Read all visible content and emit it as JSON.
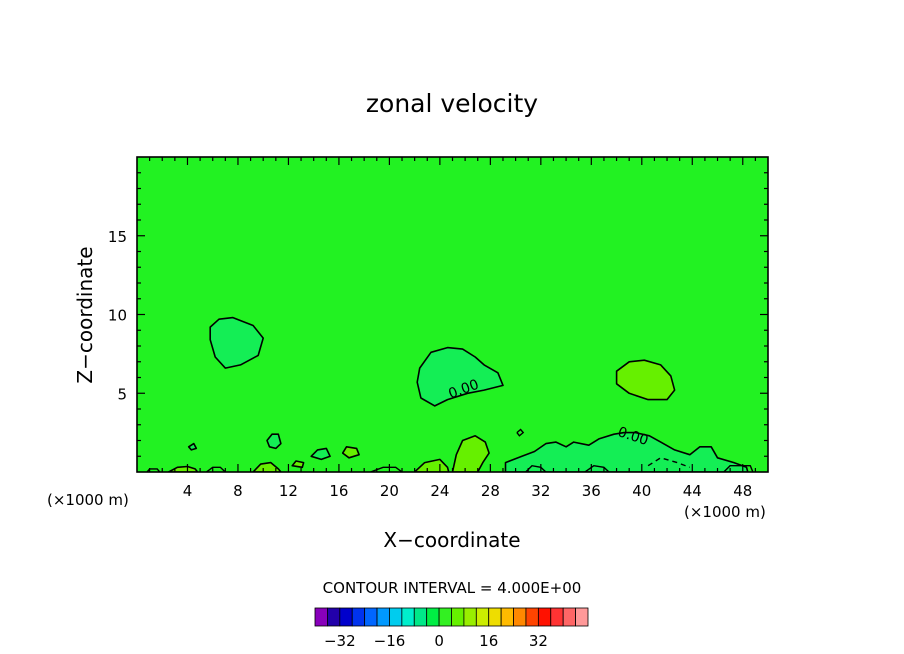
{
  "chart_data": {
    "type": "contour",
    "title": "zonal velocity",
    "xlabel": "X−coordinate",
    "ylabel": "Z−coordinate",
    "x_unit_left": "(×1000 m)",
    "x_unit_right": "(×1000 m)",
    "xlim": [
      0,
      50
    ],
    "ylim": [
      0,
      20
    ],
    "x_ticks": [
      4,
      8,
      12,
      16,
      20,
      24,
      28,
      32,
      36,
      40,
      44,
      48
    ],
    "y_ticks": [
      5,
      10,
      15
    ],
    "contour_label": "0.00",
    "contour_interval_text": "CONTOUR INTERVAL = 4.000E+00",
    "background_color": "#22f222",
    "colorbar": {
      "colors": [
        "#8800bb",
        "#2200aa",
        "#0000cc",
        "#0033ee",
        "#0066ff",
        "#0099ff",
        "#00ccee",
        "#00eecc",
        "#00e888",
        "#00ee44",
        "#33f022",
        "#66f000",
        "#99ee00",
        "#cced00",
        "#eedd00",
        "#ffbb00",
        "#ff8800",
        "#ff4400",
        "#ff1100",
        "#ff3333",
        "#ff6666",
        "#ff9999"
      ],
      "tick_values": [
        -32,
        -16,
        0,
        16,
        32
      ],
      "tick_labels": [
        "−32",
        "−16",
        "0",
        "16",
        "32"
      ],
      "min": -40,
      "max": 48
    },
    "regions": [
      {
        "name": "neg-blob-upper-left",
        "color": "#14ee55",
        "points": [
          [
            5.8,
            9.2
          ],
          [
            6.5,
            9.7
          ],
          [
            7.6,
            9.8
          ],
          [
            9.2,
            9.3
          ],
          [
            10,
            8.5
          ],
          [
            9.6,
            7.4
          ],
          [
            8.2,
            6.8
          ],
          [
            7,
            6.6
          ],
          [
            6.2,
            7.3
          ],
          [
            5.8,
            8.4
          ]
        ]
      },
      {
        "name": "neg-blob-center",
        "color": "#14ee55",
        "points": [
          [
            22.4,
            6.6
          ],
          [
            23.3,
            7.6
          ],
          [
            24.6,
            7.9
          ],
          [
            25.8,
            7.8
          ],
          [
            26.8,
            7.3
          ],
          [
            27.5,
            6.8
          ],
          [
            28.6,
            6.3
          ],
          [
            29,
            5.5
          ],
          [
            27.5,
            5.2
          ],
          [
            26.2,
            5
          ],
          [
            24.6,
            4.6
          ],
          [
            23.6,
            4.2
          ],
          [
            22.5,
            4.7
          ],
          [
            22.2,
            5.7
          ]
        ]
      },
      {
        "name": "pos-blob-right",
        "color": "#66f000",
        "points": [
          [
            38,
            6.4
          ],
          [
            39,
            7
          ],
          [
            40.2,
            7.1
          ],
          [
            41.5,
            6.8
          ],
          [
            42.3,
            6.1
          ],
          [
            42.6,
            5.2
          ],
          [
            42,
            4.6
          ],
          [
            40.5,
            4.6
          ],
          [
            39,
            5
          ],
          [
            38,
            5.6
          ]
        ]
      },
      {
        "name": "neg-band-bottom-right",
        "color": "#14ee55",
        "points": [
          [
            29.2,
            0
          ],
          [
            29.2,
            0.6
          ],
          [
            30.5,
            1
          ],
          [
            31.5,
            1.3
          ],
          [
            32.4,
            1.8
          ],
          [
            33.2,
            1.9
          ],
          [
            34,
            1.6
          ],
          [
            34.6,
            1.9
          ],
          [
            35.8,
            1.7
          ],
          [
            36.6,
            2.1
          ],
          [
            37.8,
            2.4
          ],
          [
            38.6,
            2.5
          ],
          [
            39.5,
            2.5
          ],
          [
            40.6,
            2.3
          ],
          [
            41.5,
            1.9
          ],
          [
            42.6,
            1.4
          ],
          [
            43.8,
            1.1
          ],
          [
            44.6,
            1.6
          ],
          [
            45.5,
            1.6
          ],
          [
            46,
            0.9
          ],
          [
            47.3,
            0.6
          ],
          [
            48.3,
            0.3
          ],
          [
            48.4,
            0
          ]
        ]
      },
      {
        "name": "pos-lobe-bottom-center",
        "color": "#66f000",
        "points": [
          [
            25,
            0
          ],
          [
            25.3,
            1.1
          ],
          [
            25.8,
            2
          ],
          [
            26.8,
            2.3
          ],
          [
            27.6,
            1.9
          ],
          [
            27.9,
            1.2
          ],
          [
            27.4,
            0.6
          ],
          [
            27,
            0
          ]
        ]
      },
      {
        "name": "pos-patch-bottom-left",
        "color": "#66f000",
        "points": [
          [
            2.5,
            0
          ],
          [
            3.2,
            0.3
          ],
          [
            4,
            0.35
          ],
          [
            4.6,
            0.2
          ],
          [
            4.8,
            0
          ]
        ]
      },
      {
        "name": "pos-patch-bottom-2",
        "color": "#66f000",
        "points": [
          [
            9.2,
            0
          ],
          [
            9.8,
            0.5
          ],
          [
            10.6,
            0.6
          ],
          [
            11.2,
            0.2
          ],
          [
            11.4,
            0
          ]
        ]
      },
      {
        "name": "pos-patch-bottom-3",
        "color": "#66f000",
        "points": [
          [
            22,
            0
          ],
          [
            22.8,
            0.6
          ],
          [
            24,
            0.8
          ],
          [
            24.6,
            0.3
          ],
          [
            24.7,
            0
          ]
        ]
      },
      {
        "name": "small-blob-11",
        "color": "#14ee55",
        "points": [
          [
            10.3,
            2
          ],
          [
            10.7,
            2.4
          ],
          [
            11.2,
            2.4
          ],
          [
            11.4,
            1.8
          ],
          [
            11,
            1.5
          ],
          [
            10.5,
            1.6
          ]
        ]
      },
      {
        "name": "small-blob-15",
        "color": "#14ee55",
        "points": [
          [
            13.8,
            1
          ],
          [
            14.3,
            1.4
          ],
          [
            15,
            1.5
          ],
          [
            15.3,
            1
          ],
          [
            14.6,
            0.8
          ]
        ]
      },
      {
        "name": "small-blob-17",
        "color": "#66f000",
        "points": [
          [
            16.3,
            1.2
          ],
          [
            16.6,
            1.6
          ],
          [
            17.4,
            1.5
          ],
          [
            17.6,
            1.1
          ],
          [
            16.8,
            0.9
          ]
        ]
      },
      {
        "name": "small-blob-12",
        "color": "#66f000",
        "points": [
          [
            12.3,
            0.4
          ],
          [
            12.6,
            0.7
          ],
          [
            13.2,
            0.6
          ],
          [
            13.1,
            0.3
          ]
        ]
      },
      {
        "name": "small-blob-5",
        "color": "#14ee55",
        "points": [
          [
            4.1,
            1.6
          ],
          [
            4.5,
            1.8
          ],
          [
            4.7,
            1.5
          ],
          [
            4.3,
            1.4
          ]
        ]
      }
    ],
    "contour_lines": [
      {
        "name": "dashed-contour-bottom-right",
        "style": "dashed",
        "points": [
          [
            40.5,
            0.4
          ],
          [
            41.5,
            0.9
          ],
          [
            42.8,
            0.6
          ],
          [
            43.8,
            0.3
          ]
        ]
      },
      {
        "name": "contour-bottom-far-right",
        "style": "solid",
        "points": [
          [
            46.5,
            0
          ],
          [
            47,
            0.4
          ],
          [
            48.6,
            0.4
          ],
          [
            48.8,
            0
          ]
        ]
      },
      {
        "name": "contour-bottom-mid",
        "style": "solid",
        "points": [
          [
            18.5,
            0
          ],
          [
            19.5,
            0.3
          ],
          [
            20.5,
            0.3
          ],
          [
            21,
            0
          ]
        ]
      },
      {
        "name": "contour-bottom-left-2",
        "style": "solid",
        "points": [
          [
            5.5,
            0
          ],
          [
            6,
            0.3
          ],
          [
            6.6,
            0.3
          ],
          [
            7,
            0
          ]
        ]
      },
      {
        "name": "contour-bottom-left-1",
        "style": "solid",
        "points": [
          [
            0.8,
            0
          ],
          [
            1,
            0.2
          ],
          [
            1.6,
            0.2
          ],
          [
            1.8,
            0
          ]
        ]
      },
      {
        "name": "contour-bottom-37",
        "style": "solid",
        "points": [
          [
            35.5,
            0
          ],
          [
            36.2,
            0.4
          ],
          [
            37,
            0.3
          ],
          [
            37.4,
            0
          ]
        ]
      },
      {
        "name": "contour-bottom-31",
        "style": "solid",
        "points": [
          [
            30.8,
            0
          ],
          [
            31.3,
            0.4
          ],
          [
            32,
            0.3
          ],
          [
            32.4,
            0
          ]
        ]
      },
      {
        "name": "dot-contour-30",
        "style": "solid",
        "points": [
          [
            30.1,
            2.5
          ],
          [
            30.4,
            2.7
          ],
          [
            30.6,
            2.5
          ],
          [
            30.3,
            2.3
          ],
          [
            30.1,
            2.5
          ]
        ]
      }
    ]
  }
}
